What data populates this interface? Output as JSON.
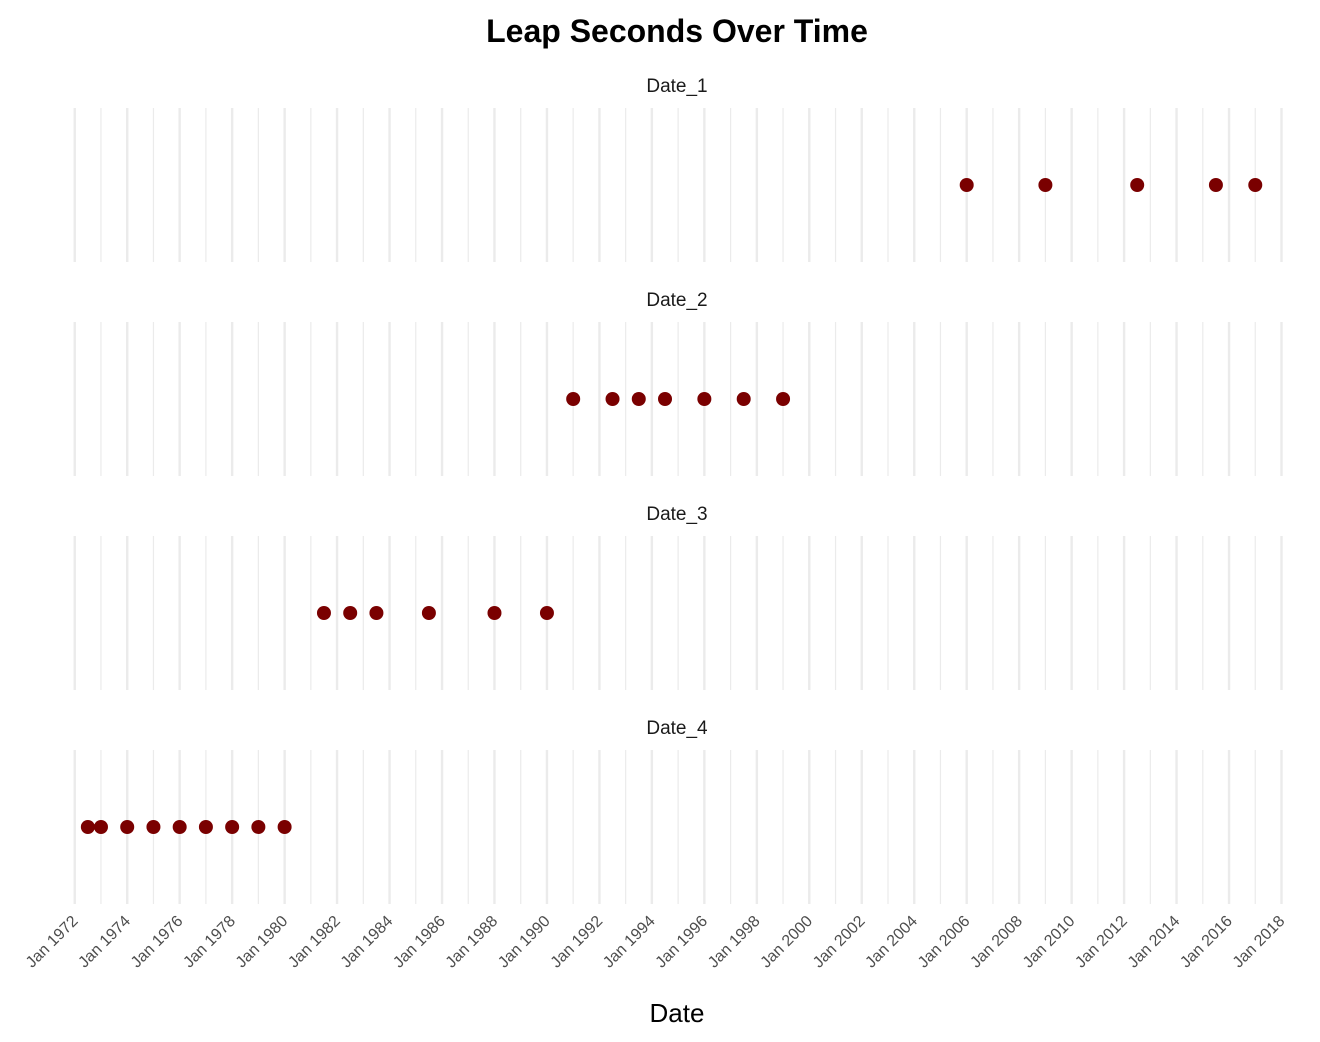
{
  "chart_data": {
    "type": "scatter",
    "title": "Leap Seconds Over Time",
    "xlabel": "Date",
    "ylabel": "",
    "x_range": [
      "1971-09-15",
      "2018-09-15"
    ],
    "x_ticks": [
      "Jan 1972",
      "Jan 1974",
      "Jan 1976",
      "Jan 1978",
      "Jan 1980",
      "Jan 1982",
      "Jan 1984",
      "Jan 1986",
      "Jan 1988",
      "Jan 1990",
      "Jan 1992",
      "Jan 1994",
      "Jan 1996",
      "Jan 1998",
      "Jan 2000",
      "Jan 2002",
      "Jan 2004",
      "Jan 2006",
      "Jan 2008",
      "Jan 2010",
      "Jan 2012",
      "Jan 2014",
      "Jan 2016",
      "Jan 2018"
    ],
    "point_color": "#7a0000",
    "grid": "vertical",
    "panels": [
      {
        "name": "Date_1",
        "dates": [
          "2006-01-01",
          "2009-01-01",
          "2012-07-01",
          "2015-07-01",
          "2017-01-01"
        ]
      },
      {
        "name": "Date_2",
        "dates": [
          "1991-01-01",
          "1992-07-01",
          "1993-07-01",
          "1994-07-01",
          "1996-01-01",
          "1997-07-01",
          "1999-01-01"
        ]
      },
      {
        "name": "Date_3",
        "dates": [
          "1981-07-01",
          "1982-07-01",
          "1983-07-01",
          "1985-07-01",
          "1988-01-01",
          "1990-01-01"
        ]
      },
      {
        "name": "Date_4",
        "dates": [
          "1972-07-01",
          "1973-01-01",
          "1974-01-01",
          "1975-01-01",
          "1976-01-01",
          "1977-01-01",
          "1978-01-01",
          "1979-01-01",
          "1980-01-01"
        ]
      }
    ]
  }
}
